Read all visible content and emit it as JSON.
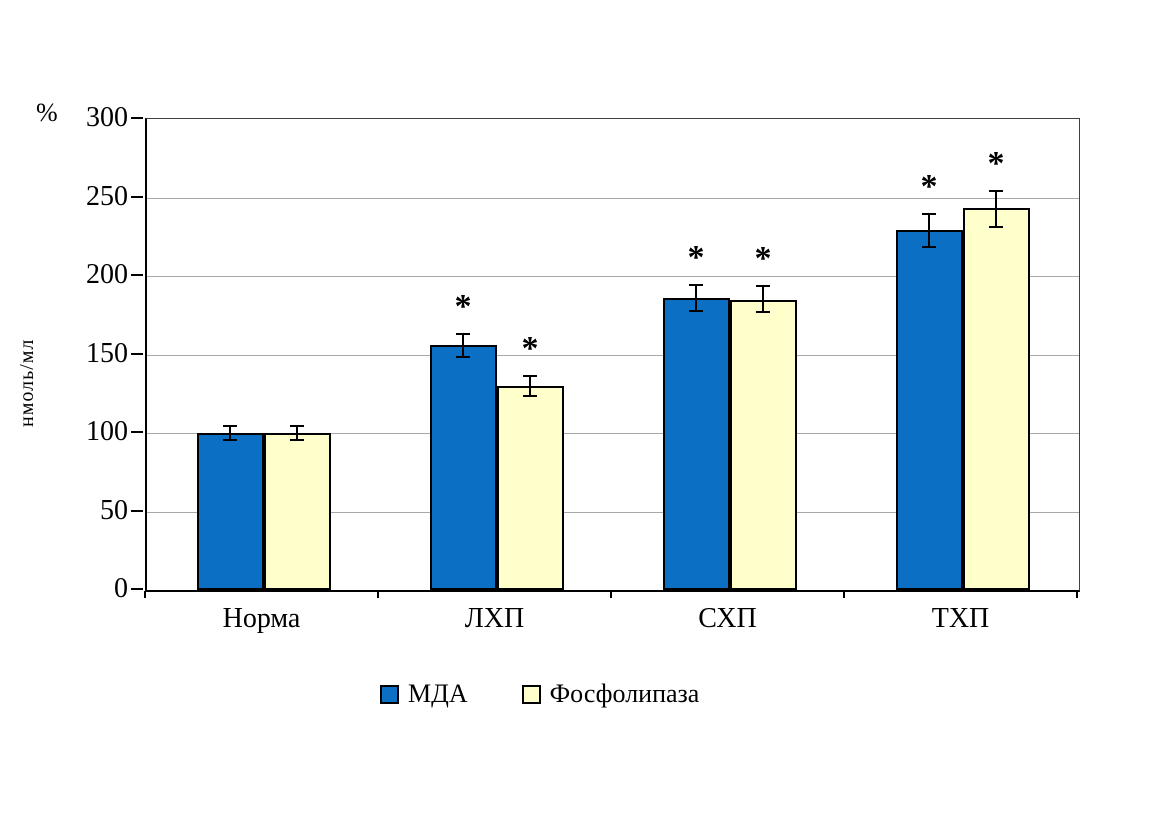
{
  "chart_data": {
    "type": "bar",
    "title": "",
    "categories": [
      "Норма",
      "ЛХП",
      "СХП",
      "ТХП"
    ],
    "series": [
      {
        "name": "МДА",
        "color": "#0B70C4",
        "values": [
          100,
          156,
          186,
          229
        ],
        "errors": [
          5,
          8,
          9,
          11
        ],
        "significant": [
          false,
          true,
          true,
          true
        ]
      },
      {
        "name": "Фосфолипаза",
        "color": "#FFFFCC",
        "values": [
          100,
          130,
          185,
          243
        ],
        "errors": [
          5,
          7,
          9,
          12
        ],
        "significant": [
          false,
          true,
          true,
          true
        ]
      }
    ],
    "y_axis": {
      "min": 0,
      "max": 300,
      "step": 50,
      "ticks": [
        0,
        50,
        100,
        150,
        200,
        250,
        300
      ],
      "unit_label": "%",
      "axis_label": "нмоль/мл"
    },
    "x_axis": {
      "label": ""
    },
    "grid": true,
    "legend_position": "bottom",
    "significance_marker": "*",
    "colors": {
      "bar_border": "#000000",
      "gridline": "#a8a8a8",
      "axis": "#000000",
      "background": "#ffffff"
    }
  }
}
